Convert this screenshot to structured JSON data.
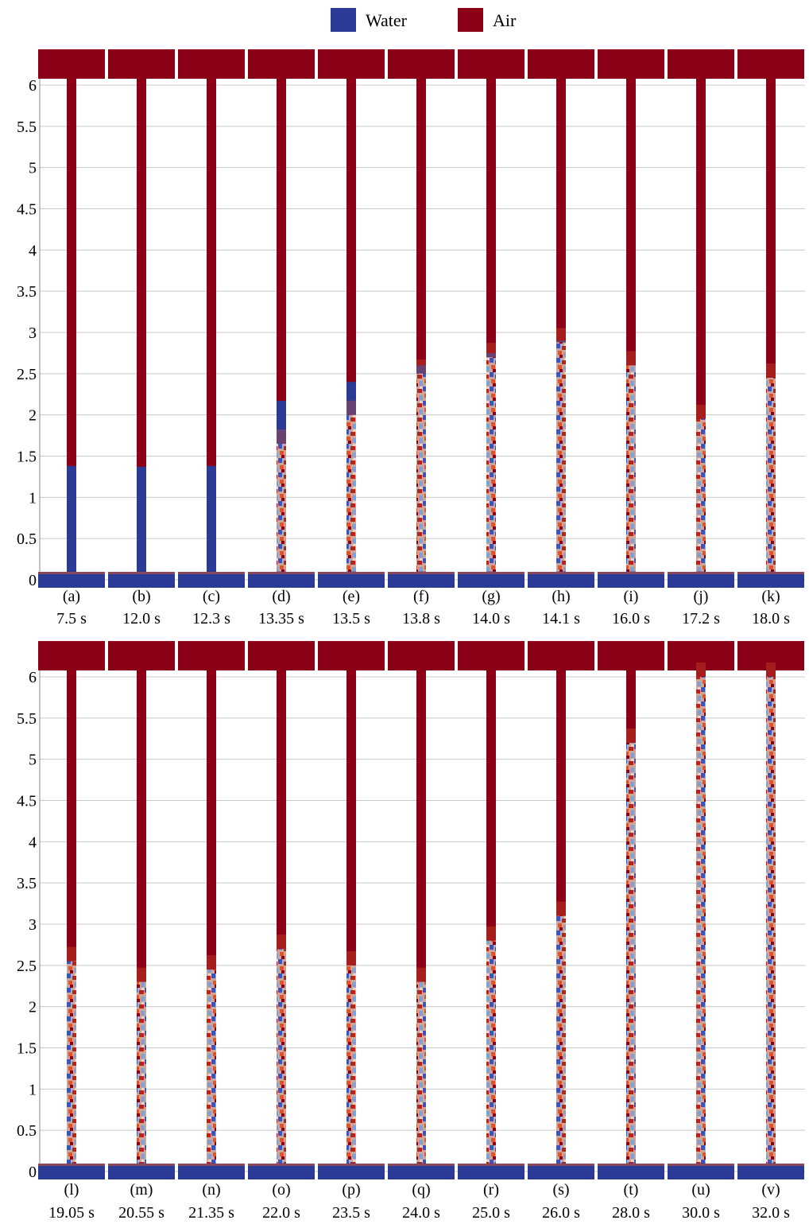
{
  "legend": {
    "items": [
      {
        "label": "Water",
        "color": "#2b3a94"
      },
      {
        "label": "Air",
        "color": "#8b0016"
      }
    ]
  },
  "colors": {
    "water": "#2b3a94",
    "air": "#8b0016",
    "mixed_light": "#7fa0d8",
    "mixed_mid": "#c9a79c",
    "mixed_orange": "#d9542f",
    "grid": "#c8c8c8"
  },
  "chart_data": [
    {
      "type": "heatmap",
      "description_kind": "water-column snapshots",
      "ylim": [
        0,
        6.2
      ],
      "yticks": [
        0,
        0.5,
        1,
        1.5,
        2,
        2.5,
        3,
        3.5,
        4,
        4.5,
        5,
        5.5,
        6
      ],
      "ytick_labels": [
        "0",
        "0.5",
        "1",
        "1.5",
        "2",
        "2.5",
        "3",
        "3.5",
        "4",
        "4.5",
        "5",
        "5.5",
        "6"
      ],
      "grid": true,
      "panels": [
        {
          "letter": "(a)",
          "time": "7.5 s",
          "water_top": 1.38,
          "mix_top": 1.38,
          "mix_bottom": 1.38
        },
        {
          "letter": "(b)",
          "time": "12.0 s",
          "water_top": 1.37,
          "mix_top": 1.37,
          "mix_bottom": 1.37
        },
        {
          "letter": "(c)",
          "time": "12.3 s",
          "water_top": 1.38,
          "mix_top": 1.38,
          "mix_bottom": 1.38
        },
        {
          "letter": "(d)",
          "time": "13.35 s",
          "water_top": 2.17,
          "mix_top": 1.65,
          "mix_bottom": 0.1
        },
        {
          "letter": "(e)",
          "time": "13.5 s",
          "water_top": 2.4,
          "mix_top": 2.0,
          "mix_bottom": 0.1
        },
        {
          "letter": "(f)",
          "time": "13.8 s",
          "water_top": 2.6,
          "mix_top": 2.5,
          "mix_bottom": 0.1
        },
        {
          "letter": "(g)",
          "time": "14.0 s",
          "water_top": 2.75,
          "mix_top": 2.7,
          "mix_bottom": 0.1
        },
        {
          "letter": "(h)",
          "time": "14.1 s",
          "water_top": 2.9,
          "mix_top": 2.88,
          "mix_bottom": 0.1
        },
        {
          "letter": "(i)",
          "time": "16.0 s",
          "water_top": 2.45,
          "mix_top": 2.6,
          "mix_bottom": 0.1
        },
        {
          "letter": "(j)",
          "time": "17.2 s",
          "water_top": 1.9,
          "mix_top": 1.95,
          "mix_bottom": 0.1
        },
        {
          "letter": "(k)",
          "time": "18.0 s",
          "water_top": 2.2,
          "mix_top": 2.45,
          "mix_bottom": 0.1
        }
      ]
    },
    {
      "type": "heatmap",
      "description_kind": "water-column snapshots",
      "ylim": [
        0,
        6.2
      ],
      "yticks": [
        0,
        0.5,
        1,
        1.5,
        2,
        2.5,
        3,
        3.5,
        4,
        4.5,
        5,
        5.5,
        6
      ],
      "ytick_labels": [
        "0",
        "0.5",
        "1",
        "1.5",
        "2",
        "2.5",
        "3",
        "3.5",
        "4",
        "4.5",
        "5",
        "5.5",
        "6"
      ],
      "grid": true,
      "panels": [
        {
          "letter": "(l)",
          "time": "19.05 s",
          "water_top": 2.3,
          "mix_top": 2.55,
          "mix_bottom": 0.1
        },
        {
          "letter": "(m)",
          "time": "20.55 s",
          "water_top": 2.05,
          "mix_top": 2.3,
          "mix_bottom": 0.1
        },
        {
          "letter": "(n)",
          "time": "21.35 s",
          "water_top": 2.2,
          "mix_top": 2.45,
          "mix_bottom": 0.1
        },
        {
          "letter": "(o)",
          "time": "22.0 s",
          "water_top": 2.5,
          "mix_top": 2.7,
          "mix_bottom": 0.1
        },
        {
          "letter": "(p)",
          "time": "23.5 s",
          "water_top": 2.1,
          "mix_top": 2.5,
          "mix_bottom": 0.1
        },
        {
          "letter": "(q)",
          "time": "24.0 s",
          "water_top": 1.95,
          "mix_top": 2.3,
          "mix_bottom": 0.1
        },
        {
          "letter": "(r)",
          "time": "25.0 s",
          "water_top": 2.1,
          "mix_top": 2.8,
          "mix_bottom": 0.1
        },
        {
          "letter": "(s)",
          "time": "26.0 s",
          "water_top": 1.5,
          "mix_top": 3.1,
          "mix_bottom": 0.1
        },
        {
          "letter": "(t)",
          "time": "28.0 s",
          "water_top": 0.5,
          "mix_top": 5.2,
          "mix_bottom": 0.1
        },
        {
          "letter": "(u)",
          "time": "30.0 s",
          "water_top": 0.4,
          "mix_top": 6.0,
          "mix_bottom": 0.1
        },
        {
          "letter": "(v)",
          "time": "32.0 s",
          "water_top": 0.3,
          "mix_top": 6.0,
          "mix_bottom": 0.1
        }
      ]
    }
  ]
}
